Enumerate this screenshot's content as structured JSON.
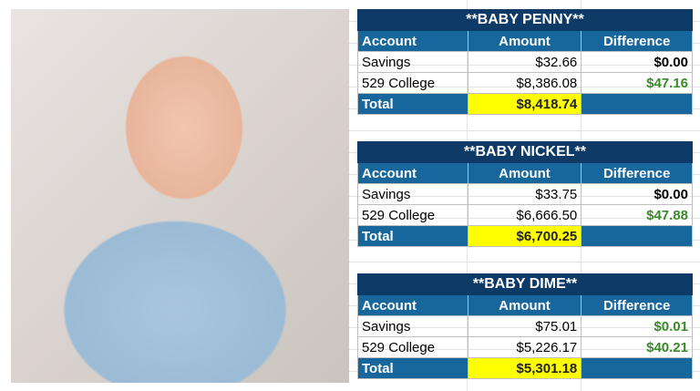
{
  "photo": {
    "alt": "baby-photo"
  },
  "columns": [
    "Account",
    "Amount",
    "Difference"
  ],
  "tables": [
    {
      "title": "**BABY PENNY**",
      "rows": [
        {
          "account": "Savings",
          "amount": "$32.66",
          "difference": "$0.00"
        },
        {
          "account": "529 College",
          "amount": "$8,386.08",
          "difference": "$47.16"
        }
      ],
      "total_label": "Total",
      "total": "$8,418.74"
    },
    {
      "title": "**BABY NICKEL**",
      "rows": [
        {
          "account": "Savings",
          "amount": "$33.75",
          "difference": "$0.00"
        },
        {
          "account": "529 College",
          "amount": "$6,666.50",
          "difference": "$47.88"
        }
      ],
      "total_label": "Total",
      "total": "$6,700.25"
    },
    {
      "title": "**BABY DIME**",
      "rows": [
        {
          "account": "Savings",
          "amount": "$75.01",
          "difference": "$0.01"
        },
        {
          "account": "529 College",
          "amount": "$5,226.17",
          "difference": "$40.21"
        }
      ],
      "total_label": "Total",
      "total": "$5,301.18"
    }
  ],
  "colors": {
    "title_bg": "#0e3a68",
    "header_bg": "#18679c",
    "total_highlight": "#ffff00",
    "positive": "#3a8a2a"
  }
}
